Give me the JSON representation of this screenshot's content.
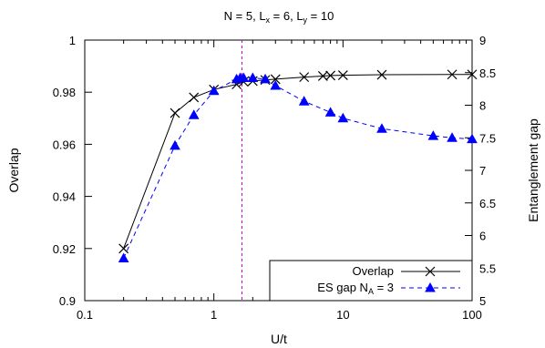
{
  "chart_data": {
    "type": "line",
    "title": {
      "prefix": "N = 5, L",
      "sub1": "x",
      "mid": " = 6, L",
      "sub2": "y",
      "suffix": " = 10"
    },
    "xlabel": "U/t",
    "ylabel_left": "Overlap",
    "ylabel_right": "Entanglement gap",
    "x_scale": "log",
    "xlim": [
      0.1,
      100
    ],
    "ylim_left": [
      0.9,
      1.0
    ],
    "ylim_right": [
      5,
      9
    ],
    "x_ticks": [
      0.1,
      1,
      10,
      100
    ],
    "x_tick_labels": [
      "0.1",
      "1",
      "10",
      "100"
    ],
    "y_left_ticks": [
      0.9,
      0.92,
      0.94,
      0.96,
      0.98,
      1.0
    ],
    "y_left_tick_labels": [
      "0.9",
      "0.92",
      "0.94",
      "0.96",
      "0.98",
      "1"
    ],
    "y_right_ticks": [
      5,
      5.5,
      6,
      6.5,
      7,
      7.5,
      8,
      8.5,
      9
    ],
    "y_right_tick_labels": [
      "5",
      "5.5",
      "6",
      "6.5",
      "7",
      "7.5",
      "8",
      "8.5",
      "9"
    ],
    "vline_x": 1.65,
    "series": [
      {
        "name": "Overlap",
        "axis": "left",
        "color": "#000000",
        "marker": "cross",
        "line": "solid",
        "x": [
          0.2,
          0.5,
          0.7,
          1.0,
          1.5,
          1.7,
          2.0,
          2.5,
          3.0,
          5.0,
          7.0,
          8.0,
          10.0,
          20.0,
          70.0,
          100.0
        ],
        "y": [
          0.92,
          0.972,
          0.978,
          0.981,
          0.983,
          0.984,
          0.9843,
          0.9847,
          0.985,
          0.9858,
          0.9862,
          0.9864,
          0.9865,
          0.9867,
          0.9868,
          0.9868
        ]
      },
      {
        "name": "ES gap N",
        "name_sub": "A",
        "name_suffix": " = 3",
        "axis": "right",
        "color": "#0000ff",
        "marker": "triangle",
        "line": "dashed",
        "x": [
          0.2,
          0.5,
          0.7,
          1.0,
          1.5,
          1.6,
          1.7,
          2.0,
          2.5,
          3.0,
          5.0,
          8.0,
          10.0,
          20.0,
          50.0,
          70.0,
          100.0
        ],
        "y": [
          5.65,
          7.38,
          7.85,
          8.22,
          8.4,
          8.42,
          8.42,
          8.42,
          8.4,
          8.3,
          8.06,
          7.89,
          7.8,
          7.64,
          7.53,
          7.5,
          7.48
        ]
      }
    ],
    "legend_position": "bottom-right"
  }
}
